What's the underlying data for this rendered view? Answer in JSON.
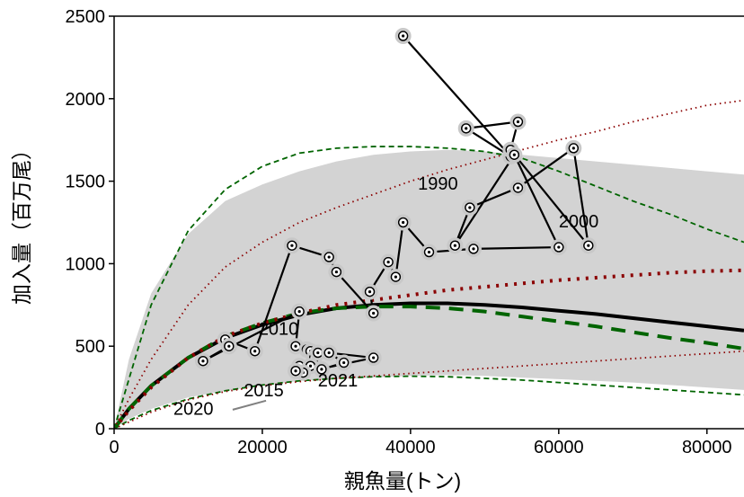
{
  "chart_data": {
    "type": "line",
    "title": "",
    "xlabel": "親魚量(トン)",
    "ylabel": "加入量（百万尾）",
    "xlim": [
      0,
      85000
    ],
    "ylim": [
      0,
      2500
    ],
    "xticks": [
      0,
      20000,
      40000,
      60000,
      80000
    ],
    "xtick_labels": [
      "0",
      "20000",
      "40000",
      "60000",
      "80000"
    ],
    "yticks": [
      0,
      500,
      1000,
      1500,
      2000,
      2500
    ],
    "ytick_labels": [
      "0",
      "500",
      "1000",
      "1500",
      "2000",
      "2500"
    ],
    "grid": false,
    "legend": "none",
    "band": {
      "color": "#d3d3d3",
      "x": [
        0,
        2000,
        5000,
        10000,
        15000,
        20000,
        25000,
        30000,
        35000,
        40000,
        45000,
        50000,
        55000,
        60000,
        65000,
        70000,
        75000,
        80000,
        85000
      ],
      "upper": [
        0,
        420,
        820,
        1180,
        1380,
        1480,
        1560,
        1620,
        1660,
        1680,
        1690,
        1680,
        1660,
        1640,
        1620,
        1600,
        1580,
        1560,
        1540
      ],
      "lower": [
        0,
        60,
        120,
        190,
        230,
        260,
        290,
        300,
        310,
        320,
        325,
        320,
        310,
        300,
        290,
        280,
        265,
        250,
        235
      ]
    },
    "series": [
      {
        "color": "#000000",
        "dash": "solid",
        "width": 4,
        "x": [
          0,
          2000,
          5000,
          10000,
          15000,
          20000,
          25000,
          30000,
          35000,
          40000,
          45000,
          50000,
          55000,
          60000,
          65000,
          70000,
          75000,
          80000,
          85000
        ],
        "y": [
          0,
          120,
          260,
          430,
          550,
          630,
          690,
          730,
          750,
          760,
          760,
          750,
          735,
          715,
          695,
          670,
          645,
          620,
          595
        ]
      },
      {
        "color": "#006400",
        "dash": "long",
        "width": 4,
        "x": [
          0,
          2000,
          5000,
          10000,
          15000,
          20000,
          25000,
          30000,
          35000,
          40000,
          45000,
          50000,
          55000,
          60000,
          65000,
          70000,
          75000,
          80000,
          85000
        ],
        "y": [
          0,
          120,
          260,
          430,
          560,
          640,
          700,
          730,
          740,
          740,
          730,
          710,
          680,
          650,
          620,
          585,
          550,
          520,
          485
        ]
      },
      {
        "color": "#8b0000",
        "dash": "dot",
        "width": 4,
        "x": [
          0,
          2000,
          5000,
          10000,
          15000,
          20000,
          25000,
          30000,
          35000,
          40000,
          45000,
          50000,
          55000,
          60000,
          65000,
          70000,
          75000,
          80000,
          85000
        ],
        "y": [
          0,
          110,
          250,
          430,
          560,
          640,
          700,
          750,
          780,
          810,
          840,
          860,
          880,
          900,
          915,
          930,
          945,
          955,
          960
        ]
      },
      {
        "color": "#006400",
        "dash": "short",
        "width": 1.8,
        "x": [
          0,
          2000,
          5000,
          10000,
          15000,
          20000,
          25000,
          30000,
          35000,
          40000,
          45000,
          50000,
          55000,
          60000,
          65000,
          70000,
          75000,
          80000,
          85000
        ],
        "y": [
          0,
          300,
          750,
          1200,
          1450,
          1590,
          1670,
          1700,
          1710,
          1710,
          1700,
          1680,
          1640,
          1560,
          1470,
          1380,
          1300,
          1210,
          1130
        ]
      },
      {
        "color": "#006400",
        "dash": "short",
        "width": 1.8,
        "x": [
          0,
          2000,
          5000,
          10000,
          15000,
          20000,
          25000,
          30000,
          35000,
          40000,
          45000,
          50000,
          55000,
          60000,
          65000,
          70000,
          75000,
          80000,
          85000
        ],
        "y": [
          0,
          50,
          110,
          180,
          230,
          265,
          290,
          305,
          315,
          318,
          315,
          305,
          295,
          280,
          265,
          250,
          235,
          220,
          205
        ]
      },
      {
        "color": "#8b0000",
        "dash": "finedot",
        "width": 1.8,
        "x": [
          0,
          2000,
          5000,
          10000,
          15000,
          20000,
          25000,
          30000,
          35000,
          40000,
          45000,
          50000,
          55000,
          60000,
          65000,
          70000,
          75000,
          80000,
          85000
        ],
        "y": [
          0,
          180,
          420,
          750,
          980,
          1130,
          1250,
          1340,
          1420,
          1500,
          1570,
          1630,
          1690,
          1750,
          1800,
          1860,
          1910,
          1960,
          1990
        ]
      },
      {
        "color": "#8b0000",
        "dash": "finedot",
        "width": 1.8,
        "x": [
          0,
          2000,
          5000,
          10000,
          15000,
          20000,
          25000,
          30000,
          35000,
          40000,
          45000,
          50000,
          55000,
          60000,
          65000,
          70000,
          75000,
          80000,
          85000
        ],
        "y": [
          0,
          40,
          100,
          175,
          225,
          260,
          285,
          305,
          320,
          335,
          350,
          365,
          380,
          395,
          410,
          425,
          440,
          455,
          470
        ]
      }
    ],
    "observed": {
      "x": [
        39000,
        53500,
        47500,
        54500,
        53500,
        64000,
        62000,
        54500,
        48000,
        46000,
        54000,
        60000,
        48500,
        42500,
        39000,
        38000,
        37000,
        34500,
        35000,
        30000,
        29000,
        24000,
        19000,
        15000,
        15500,
        12000,
        25000,
        24500,
        26000,
        26500,
        27000,
        27500,
        25000,
        26500,
        28000,
        31000,
        29000,
        35000,
        25500,
        24500
      ],
      "y": [
        2380,
        1650,
        1820,
        1860,
        1690,
        1110,
        1700,
        1460,
        1340,
        1110,
        1660,
        1100,
        1090,
        1070,
        1250,
        920,
        1010,
        830,
        700,
        950,
        1040,
        1110,
        470,
        540,
        500,
        410,
        710,
        500,
        480,
        470,
        430,
        460,
        380,
        380,
        360,
        400,
        460,
        430,
        340,
        350
      ]
    },
    "annotations": [
      {
        "text": "1990",
        "x": 41000,
        "y": 1450
      },
      {
        "text": "2000",
        "x": 60000,
        "y": 1220
      },
      {
        "text": "2010",
        "x": 19500,
        "y": 570
      },
      {
        "text": "2015",
        "x": 17500,
        "y": 195
      },
      {
        "text": "2020",
        "x": 8000,
        "y": 85
      },
      {
        "text": "2021",
        "x": 27500,
        "y": 255
      }
    ],
    "label_leaders": [
      {
        "from_x": 16000,
        "from_y": 115,
        "to_x": 20500,
        "to_y": 170
      }
    ]
  }
}
